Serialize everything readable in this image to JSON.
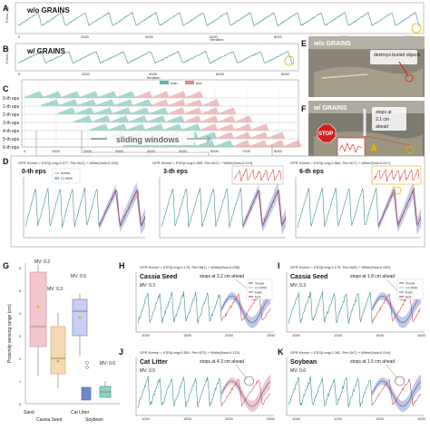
{
  "colors": {
    "signal": "#3d8c8c",
    "train": "#5cb8a8",
    "test": "#e38b8b",
    "ci": "#a9b6dc",
    "mean": "#4a5aa8",
    "gold": "#e0b300",
    "stop": "#d22020",
    "photo": "#8a8578"
  },
  "panelA": {
    "letter": "A",
    "title": "w/o GRAINS",
    "xlabel": "Iteration",
    "ylabel": "Force (N)",
    "xticks": [
      "0",
      "2000",
      "4000",
      "6000",
      "8000",
      "10000",
      "12000"
    ]
  },
  "panelB": {
    "letter": "B",
    "title": "w/ GRAINS",
    "xlabel": "Iteration",
    "ylabel": "Force (N)",
    "xticks": [
      "0",
      "2000",
      "4000",
      "6000",
      "8000"
    ]
  },
  "panelC": {
    "letter": "C",
    "legend_train": "train",
    "legend_test": "test",
    "rows": [
      "0-th eps",
      "1-th eps",
      "2-th eps",
      "3-th eps",
      "4-th eps",
      "5-th eps",
      "6-th eps"
    ],
    "xticks": [
      "0",
      "1000",
      "2000",
      "3000",
      "4000",
      "5000",
      "6000",
      "7000",
      "8000"
    ],
    "sliding_label": "sliding windows"
  },
  "panelD": {
    "letter": "D",
    "subplots": [
      {
        "kernel": "GPR Kernel = ESS(Leng:0.977, Peri:612) + White(Nois:0.153)",
        "title": "0-th eps"
      },
      {
        "kernel": "GPR Kernel = ESS(Leng:0.699, Peri:614) + White(Nois:0.013)",
        "title": "3-th eps"
      },
      {
        "kernel": "GPR Kernel = ESS(Leng:0.864, Peri:617) + White(Nois:0.017)",
        "title": "6-th eps"
      }
    ],
    "legend": [
      "mean",
      "CI 95%",
      "train",
      "test"
    ]
  },
  "panelE": {
    "letter": "E",
    "title": "w/o GRAINS",
    "note": "destroys buried objects"
  },
  "panelF": {
    "letter": "F",
    "title": "w/ GRAINS",
    "note1": "stops at",
    "note2": "2.1 cm",
    "note3": "ahead",
    "stop": "STOP"
  },
  "panelG": {
    "letter": "G",
    "ylabel": "Proximity sensing range (cm)",
    "categories": [
      "Sand",
      "Cassia Seed",
      "Cat Litter",
      "Soybean"
    ],
    "mv": [
      "MV: 0.2",
      "MV: 0.3",
      "MV: 0.5",
      "MV: 0.6"
    ],
    "yticks": [
      "0",
      "1",
      "2",
      "3",
      "4",
      "5",
      "6"
    ]
  },
  "panelH": {
    "letter": "H",
    "kernel": "GPR Kernel = ESS(Leng:0.178, Peri:581) + White(Nois:0.058)",
    "material": "Cassia Seed",
    "mv": "MV: 0.3",
    "note": "stops at 3.2 cm ahead",
    "legend": [
      "mean",
      "CI 95%",
      "train",
      "test"
    ],
    "xticks": [
      "1000",
      "1500",
      "2000",
      "2500"
    ]
  },
  "panelI": {
    "letter": "I",
    "kernel": "GPR Kernel = ESS(Leng:0.179, Peri:643) + White(Nois:0.081)",
    "material": "Cassia Seed",
    "mv": "MV: 0.3",
    "note": "stops at 1.8 cm ahead",
    "legend": [
      "mean",
      "CI 95%",
      "train",
      "test"
    ],
    "xticks": [
      "1000",
      "1200",
      "1400",
      "1600"
    ]
  },
  "panelJ": {
    "letter": "J",
    "kernel": "GPR Kernel = ESS(Leng:0.551, Peri:575) + White(Nois:0.122)",
    "material": "Cat Litter",
    "mv": "MV: 0.5",
    "note": "stops at 4.3 cm ahead",
    "xticks": [
      "1000",
      "1500",
      "2000",
      "2500"
    ]
  },
  "panelK": {
    "letter": "K",
    "kernel": "GPR Kernel = ESS(Leng:0.262, Peri:347) + White(Nois:0.044)",
    "material": "Soybean",
    "mv": "MV: 0.6",
    "note": "stops at 1.5 cm ahead",
    "xticks": [
      "1000",
      "1200",
      "1400",
      "1600"
    ]
  }
}
